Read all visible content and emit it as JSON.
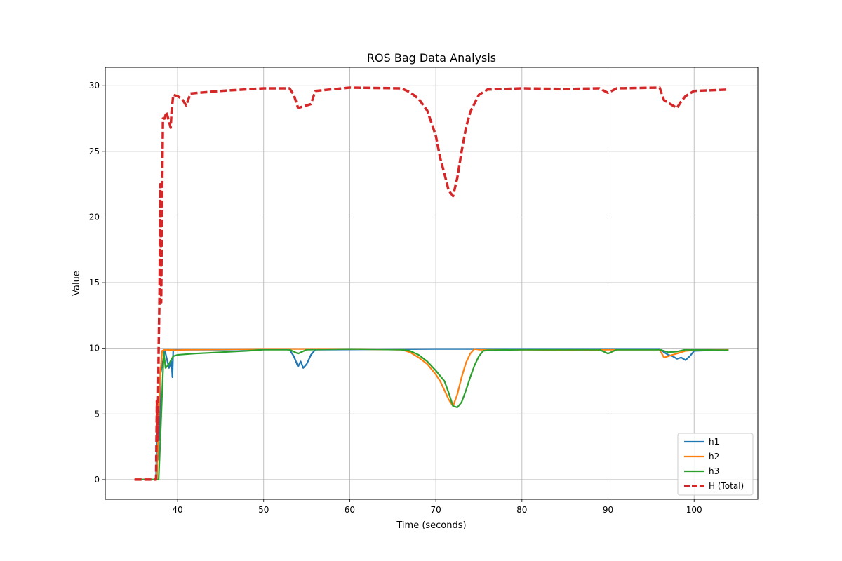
{
  "chart_data": {
    "type": "line",
    "title": "ROS Bag Data Analysis",
    "xlabel": "Time (seconds)",
    "ylabel": "Value",
    "xlim": [
      31.6,
      107.4
    ],
    "ylim": [
      -1.5,
      31.4
    ],
    "xticks": [
      40,
      50,
      60,
      70,
      80,
      90,
      100
    ],
    "yticks": [
      0,
      5,
      10,
      15,
      20,
      25,
      30
    ],
    "grid": true,
    "legend_position": "lower right",
    "series": [
      {
        "name": "h1",
        "color": "#1f77b4",
        "style": "solid",
        "points": [
          [
            35,
            0
          ],
          [
            37.5,
            0
          ],
          [
            37.6,
            3.5
          ],
          [
            37.7,
            1.5
          ],
          [
            37.8,
            5.5
          ],
          [
            37.9,
            3
          ],
          [
            38.0,
            8
          ],
          [
            38.3,
            9
          ],
          [
            38.5,
            9.9
          ],
          [
            39.0,
            8.5
          ],
          [
            39.3,
            9
          ],
          [
            39.4,
            7.8
          ],
          [
            39.5,
            9.9
          ],
          [
            40,
            9.9
          ],
          [
            45,
            9.9
          ],
          [
            52,
            9.95
          ],
          [
            53,
            9.9
          ],
          [
            53.5,
            9.4
          ],
          [
            54,
            8.6
          ],
          [
            54.3,
            9
          ],
          [
            54.6,
            8.5
          ],
          [
            55,
            8.8
          ],
          [
            55.5,
            9.5
          ],
          [
            56,
            9.9
          ],
          [
            70,
            9.95
          ],
          [
            80,
            9.95
          ],
          [
            90,
            9.95
          ],
          [
            96,
            9.95
          ],
          [
            96.5,
            9.7
          ],
          [
            97,
            9.5
          ],
          [
            97.5,
            9.4
          ],
          [
            98,
            9.2
          ],
          [
            98.5,
            9.3
          ],
          [
            99,
            9.1
          ],
          [
            99.5,
            9.4
          ],
          [
            100,
            9.8
          ],
          [
            104,
            9.9
          ]
        ]
      },
      {
        "name": "h2",
        "color": "#ff7f0e",
        "style": "solid",
        "points": [
          [
            35,
            0
          ],
          [
            37.6,
            0
          ],
          [
            37.8,
            5
          ],
          [
            38.0,
            8
          ],
          [
            38.2,
            9.8
          ],
          [
            38.5,
            9.9
          ],
          [
            40,
            9.85
          ],
          [
            41,
            9.9
          ],
          [
            50,
            9.95
          ],
          [
            60,
            9.95
          ],
          [
            66,
            9.9
          ],
          [
            67,
            9.7
          ],
          [
            68,
            9.3
          ],
          [
            69,
            8.8
          ],
          [
            70,
            8.0
          ],
          [
            70.5,
            7.5
          ],
          [
            71,
            6.8
          ],
          [
            71.5,
            6.1
          ],
          [
            72,
            5.6
          ],
          [
            72.5,
            6.5
          ],
          [
            73,
            7.8
          ],
          [
            73.5,
            8.9
          ],
          [
            74,
            9.6
          ],
          [
            74.5,
            9.95
          ],
          [
            75,
            9.9
          ],
          [
            80,
            9.9
          ],
          [
            86,
            9.85
          ],
          [
            90,
            9.9
          ],
          [
            96,
            9.9
          ],
          [
            96.5,
            9.3
          ],
          [
            97,
            9.4
          ],
          [
            97.5,
            9.5
          ],
          [
            98,
            9.6
          ],
          [
            98.5,
            9.7
          ],
          [
            99,
            9.8
          ],
          [
            100,
            9.85
          ],
          [
            104,
            9.9
          ]
        ]
      },
      {
        "name": "h3",
        "color": "#2ca02c",
        "style": "solid",
        "points": [
          [
            35,
            0
          ],
          [
            37.8,
            0
          ],
          [
            37.9,
            1.5
          ],
          [
            38.0,
            3.1
          ],
          [
            38.2,
            6.5
          ],
          [
            38.4,
            9.7
          ],
          [
            38.6,
            8.5
          ],
          [
            39.0,
            8.8
          ],
          [
            39.5,
            9.4
          ],
          [
            40,
            9.5
          ],
          [
            42,
            9.6
          ],
          [
            45,
            9.7
          ],
          [
            48,
            9.8
          ],
          [
            50,
            9.9
          ],
          [
            53,
            9.9
          ],
          [
            54,
            9.6
          ],
          [
            55,
            9.9
          ],
          [
            60,
            9.95
          ],
          [
            66,
            9.9
          ],
          [
            67,
            9.8
          ],
          [
            68,
            9.5
          ],
          [
            69,
            9.0
          ],
          [
            70,
            8.3
          ],
          [
            71,
            7.5
          ],
          [
            71.5,
            6.6
          ],
          [
            72,
            5.6
          ],
          [
            72.5,
            5.5
          ],
          [
            73,
            5.9
          ],
          [
            73.5,
            6.8
          ],
          [
            74,
            7.8
          ],
          [
            74.5,
            8.7
          ],
          [
            75,
            9.4
          ],
          [
            75.5,
            9.8
          ],
          [
            76,
            9.85
          ],
          [
            80,
            9.9
          ],
          [
            89,
            9.9
          ],
          [
            90,
            9.6
          ],
          [
            91,
            9.9
          ],
          [
            96,
            9.9
          ],
          [
            97,
            9.7
          ],
          [
            98,
            9.75
          ],
          [
            99,
            9.9
          ],
          [
            104,
            9.85
          ]
        ]
      },
      {
        "name": "H (Total)",
        "color": "#d62728",
        "style": "dashed",
        "points": [
          [
            35,
            0
          ],
          [
            37.5,
            0
          ],
          [
            37.6,
            6
          ],
          [
            37.7,
            3
          ],
          [
            37.8,
            10
          ],
          [
            37.9,
            14
          ],
          [
            38.0,
            22.5
          ],
          [
            38.1,
            13.5
          ],
          [
            38.2,
            21
          ],
          [
            38.3,
            27.5
          ],
          [
            38.5,
            27.5
          ],
          [
            38.7,
            28
          ],
          [
            39.0,
            27.3
          ],
          [
            39.2,
            26.8
          ],
          [
            39.3,
            28
          ],
          [
            39.5,
            29.3
          ],
          [
            40,
            29.2
          ],
          [
            40.5,
            29
          ],
          [
            41,
            28.5
          ],
          [
            41.5,
            29.4
          ],
          [
            45,
            29.6
          ],
          [
            50,
            29.8
          ],
          [
            53,
            29.8
          ],
          [
            53.5,
            29.3
          ],
          [
            54,
            28.3
          ],
          [
            54.5,
            28.4
          ],
          [
            55,
            28.5
          ],
          [
            55.5,
            28.6
          ],
          [
            56,
            29.6
          ],
          [
            60,
            29.85
          ],
          [
            66,
            29.8
          ],
          [
            67,
            29.5
          ],
          [
            68,
            29.0
          ],
          [
            69,
            28.1
          ],
          [
            70,
            26.2
          ],
          [
            70.5,
            24.5
          ],
          [
            71,
            23.3
          ],
          [
            71.5,
            22.0
          ],
          [
            72,
            21.6
          ],
          [
            72.5,
            23.0
          ],
          [
            73,
            25.0
          ],
          [
            73.5,
            26.8
          ],
          [
            74,
            28.0
          ],
          [
            75,
            29.3
          ],
          [
            76,
            29.7
          ],
          [
            80,
            29.8
          ],
          [
            85,
            29.75
          ],
          [
            89,
            29.8
          ],
          [
            90,
            29.45
          ],
          [
            91,
            29.8
          ],
          [
            96,
            29.85
          ],
          [
            96.5,
            28.9
          ],
          [
            97,
            28.7
          ],
          [
            97.5,
            28.5
          ],
          [
            98,
            28.3
          ],
          [
            98.5,
            28.8
          ],
          [
            99,
            29.2
          ],
          [
            100,
            29.6
          ],
          [
            104,
            29.7
          ]
        ]
      }
    ]
  }
}
